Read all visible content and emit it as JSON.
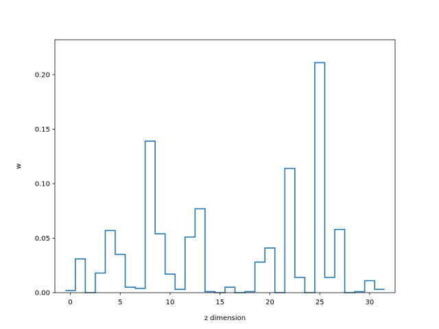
{
  "chart_data": {
    "type": "line",
    "style": "step",
    "xlabel": "z dimension",
    "ylabel": "w",
    "xlim": [
      -1.55,
      32.55
    ],
    "ylim": [
      0,
      0.232
    ],
    "xticks": [
      0,
      5,
      10,
      15,
      20,
      25,
      30
    ],
    "xtick_labels": [
      "0",
      "5",
      "10",
      "15",
      "20",
      "25",
      "30"
    ],
    "yticks": [
      0,
      0.05,
      0.1,
      0.15,
      0.2
    ],
    "ytick_labels": [
      "0.00",
      "0.05",
      "0.10",
      "0.15",
      "0.20"
    ],
    "grid": false,
    "series": [
      {
        "color": "#1f77b4",
        "x": [
          0,
          1,
          2,
          3,
          4,
          5,
          6,
          7,
          8,
          9,
          10,
          11,
          12,
          13,
          14,
          15,
          16,
          17,
          18,
          19,
          20,
          21,
          22,
          23,
          24,
          25,
          26,
          27,
          28,
          29,
          30,
          31
        ],
        "values": [
          0.002,
          0.031,
          0.0,
          0.018,
          0.057,
          0.035,
          0.005,
          0.004,
          0.139,
          0.054,
          0.017,
          0.003,
          0.051,
          0.077,
          0.001,
          0.0,
          0.005,
          0.0,
          0.001,
          0.028,
          0.041,
          0.0,
          0.114,
          0.014,
          0.0,
          0.211,
          0.014,
          0.058,
          0.0,
          0.001,
          0.011,
          0.003
        ]
      }
    ]
  }
}
